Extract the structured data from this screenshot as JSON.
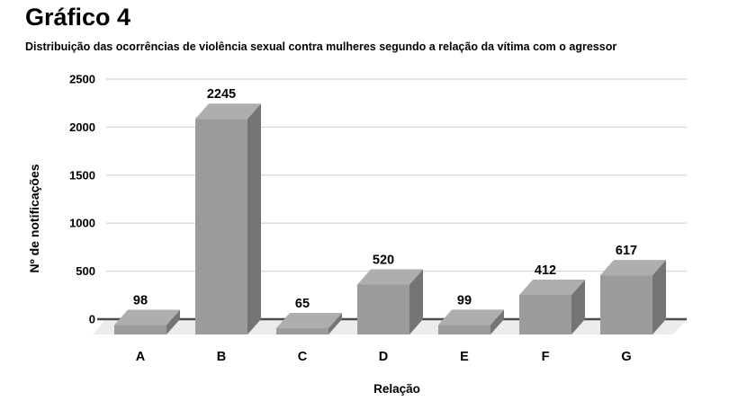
{
  "header": {
    "title": "Gráfico 4",
    "subtitle": "Distribuição das ocorrências de violência sexual contra mulheres segundo a relação da vítima com o agressor"
  },
  "chart_data": {
    "type": "bar",
    "style": "3d-column",
    "title": "Gráfico 4",
    "subtitle": "Distribuição das ocorrências de violência sexual contra mulheres segundo a relação da vítima com o agressor",
    "categories": [
      "A",
      "B",
      "C",
      "D",
      "E",
      "F",
      "G"
    ],
    "values": [
      98,
      2245,
      65,
      520,
      99,
      412,
      617
    ],
    "xlabel": "Relação",
    "ylabel": "Nº de notificações",
    "ylim": [
      0,
      2500
    ],
    "yticks": [
      0,
      500,
      1000,
      1500,
      2000,
      2500
    ],
    "grid": true,
    "legend_position": "none",
    "colors": {
      "bar_front": "#9b9b9b",
      "bar_top": "#aeaeae",
      "bar_side": "#757575",
      "floor": "#ececec",
      "gridline": "#d9d9d9",
      "zero_line": "#4c4c4c",
      "text": "#000000",
      "background": "#ffffff"
    }
  }
}
